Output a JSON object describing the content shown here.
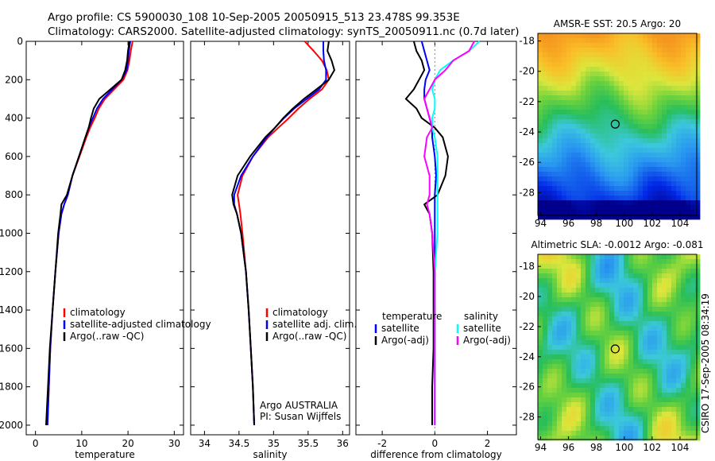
{
  "header": {
    "title_line1": "Argo profile: CS 5900030_108 10-Sep-2005 20050915_513 23.478S 99.353E",
    "title_line2": "Climatology: CARS2000. Satellite-adjusted climatology: synTS_20050911.nc (0.7d later)"
  },
  "colors": {
    "climatology": "#ff0000",
    "satellite": "#0000ff",
    "argo": "#000000",
    "diff_temp_sat": "#0000ff",
    "diff_sal_sat": "#00ffff",
    "diff_sal_argo": "#ff00ff"
  },
  "chart_data": [
    {
      "type": "line",
      "id": "temperature",
      "xlabel": "temperature",
      "xlim": [
        -2,
        32
      ],
      "ylim": [
        2050,
        0
      ],
      "xticks": [
        0,
        10,
        20,
        30
      ],
      "yticks": [
        0,
        200,
        400,
        600,
        800,
        1000,
        1200,
        1400,
        1600,
        1800,
        2000
      ],
      "depth": [
        0,
        50,
        100,
        150,
        200,
        250,
        300,
        350,
        400,
        450,
        500,
        600,
        700,
        800,
        850,
        900,
        1000,
        1200,
        1400,
        1600,
        1800,
        2000
      ],
      "series": [
        {
          "name": "climatology",
          "color": "#ff0000",
          "values": [
            21.0,
            20.6,
            20.3,
            19.9,
            19.0,
            17.0,
            15.0,
            13.7,
            12.8,
            11.8,
            11.0,
            9.5,
            8.0,
            7.0,
            6.2,
            5.6,
            5.0,
            4.3,
            3.7,
            3.2,
            2.9,
            2.6
          ]
        },
        {
          "name": "satellite-adjusted climatology",
          "color": "#0000ff",
          "values": [
            20.5,
            20.2,
            20.0,
            19.7,
            18.6,
            16.6,
            14.6,
            13.3,
            12.4,
            11.5,
            10.8,
            9.4,
            8.0,
            7.0,
            6.2,
            5.6,
            5.0,
            4.3,
            3.7,
            3.2,
            2.9,
            2.6
          ]
        },
        {
          "name": "Argo(..raw -QC)",
          "color": "#000000",
          "values": [
            20.3,
            20.0,
            19.8,
            19.4,
            18.6,
            16.2,
            13.8,
            12.6,
            12.0,
            11.5,
            10.8,
            9.4,
            8.0,
            6.8,
            5.6,
            5.4,
            4.9,
            4.3,
            3.7,
            3.1,
            2.7,
            2.3
          ]
        }
      ],
      "legend": [
        "climatology",
        "satellite-adjusted climatology",
        "Argo(..raw -QC)"
      ]
    },
    {
      "type": "line",
      "id": "salinity",
      "xlabel": "salinity",
      "xlim": [
        33.8,
        36.1
      ],
      "ylim": [
        2050,
        0
      ],
      "xticks": [
        34,
        34.5,
        35,
        35.5,
        36
      ],
      "xticklabels": [
        "34",
        "34.5",
        "35",
        "35.5",
        "36"
      ],
      "depth": [
        0,
        50,
        100,
        150,
        200,
        250,
        300,
        350,
        400,
        450,
        500,
        600,
        700,
        800,
        850,
        900,
        1000,
        1200,
        1400,
        1600,
        1800,
        2000
      ],
      "series": [
        {
          "name": "climatology",
          "color": "#ff0000",
          "values": [
            35.45,
            35.58,
            35.7,
            35.77,
            35.8,
            35.7,
            35.52,
            35.36,
            35.22,
            35.07,
            34.92,
            34.7,
            34.55,
            34.48,
            34.5,
            34.52,
            34.55,
            34.6,
            34.64,
            34.67,
            34.7,
            34.72
          ]
        },
        {
          "name": "satellite adj. clim.",
          "color": "#0000ff",
          "values": [
            35.72,
            35.72,
            35.73,
            35.76,
            35.76,
            35.66,
            35.48,
            35.3,
            35.15,
            35.02,
            34.9,
            34.7,
            34.53,
            34.43,
            34.43,
            34.47,
            34.53,
            34.6,
            34.64,
            34.67,
            34.7,
            34.72
          ]
        },
        {
          "name": "Argo(..raw -QC)",
          "color": "#000000",
          "values": [
            35.8,
            35.78,
            35.84,
            35.88,
            35.8,
            35.62,
            35.44,
            35.28,
            35.14,
            35.02,
            34.88,
            34.66,
            34.48,
            34.4,
            34.42,
            34.47,
            34.53,
            34.6,
            34.64,
            34.67,
            34.7,
            34.72
          ]
        }
      ],
      "legend": [
        "climatology",
        "satellite adj. clim.",
        "Argo(..raw -QC)"
      ],
      "annotation": [
        "Argo AUSTRALIA",
        "PI: Susan Wijffels"
      ]
    },
    {
      "type": "line",
      "id": "difference",
      "xlabel": "difference from climatology",
      "xlim": [
        -3,
        3.1
      ],
      "ylim": [
        2050,
        0
      ],
      "xticks": [
        -2,
        0,
        2
      ],
      "depth": [
        0,
        50,
        100,
        150,
        200,
        250,
        300,
        350,
        400,
        450,
        500,
        600,
        700,
        800,
        850,
        900,
        1000,
        1200,
        1400,
        1600,
        1800,
        2000
      ],
      "series": [
        {
          "name": "temperature satellite",
          "color": "#0000ff",
          "values": [
            -0.5,
            -0.4,
            -0.3,
            -0.2,
            -0.35,
            -0.4,
            -0.4,
            -0.3,
            -0.2,
            -0.1,
            -0.1,
            0.0,
            0.05,
            0.0,
            0.0,
            0.0,
            0.0,
            0.0,
            0.0,
            0.0,
            0.0,
            0.0
          ]
        },
        {
          "name": "temperature Argo(-adj)",
          "color": "#000000",
          "values": [
            -0.8,
            -0.7,
            -0.5,
            -0.4,
            -0.6,
            -0.8,
            -1.1,
            -0.7,
            -0.5,
            0.0,
            0.3,
            0.5,
            0.4,
            0.1,
            -0.4,
            -0.2,
            -0.1,
            -0.05,
            -0.05,
            -0.05,
            -0.1,
            -0.1
          ]
        },
        {
          "name": "salinity satellite",
          "color": "#00ffff",
          "values": [
            1.7,
            1.3,
            0.7,
            0.2,
            0.0,
            -0.1,
            0.0,
            0.0,
            -0.1,
            -0.1,
            0.0,
            0.1,
            0.1,
            0.1,
            0.1,
            0.1,
            0.1,
            0.0,
            0.0,
            0.0,
            0.0,
            0.0
          ]
        },
        {
          "name": "salinity Argo(-adj)",
          "color": "#ff00ff",
          "values": [
            1.5,
            1.3,
            0.7,
            0.4,
            0.0,
            -0.2,
            -0.4,
            -0.3,
            -0.2,
            -0.1,
            -0.3,
            -0.4,
            -0.2,
            -0.2,
            -0.3,
            -0.2,
            -0.1,
            0.0,
            0.0,
            0.0,
            0.0,
            0.0
          ]
        }
      ],
      "legend_headers": [
        "temperature",
        "salinity"
      ],
      "legend": [
        "satellite",
        "Argo(-adj)",
        "satellite",
        "Argo(-adj)"
      ]
    },
    {
      "type": "heatmap",
      "id": "sst_map",
      "title": "AMSR-E SST: 20.5 Argo: 20",
      "xlim": [
        93.8,
        105.2
      ],
      "ylim": [
        -29.5,
        -17.5
      ],
      "xticks": [
        94,
        96,
        98,
        100,
        102,
        104
      ],
      "yticks": [
        -18,
        -20,
        -22,
        -24,
        -26,
        -28
      ],
      "marker": {
        "lon": 99.35,
        "lat": -23.48
      }
    },
    {
      "type": "heatmap",
      "id": "sla_map",
      "title": "Altimetric SLA: -0.0012 Argo: -0.081",
      "xlim": [
        93.8,
        105.2
      ],
      "ylim": [
        -29.5,
        -17.2
      ],
      "xticks": [
        94,
        96,
        98,
        100,
        102,
        104
      ],
      "yticks": [
        -18,
        -20,
        -22,
        -24,
        -26,
        -28
      ],
      "marker": {
        "lon": 99.35,
        "lat": -23.48
      }
    }
  ],
  "footer": {
    "side_label": "CSIRO 17-Sep-2005 08:34:19"
  }
}
